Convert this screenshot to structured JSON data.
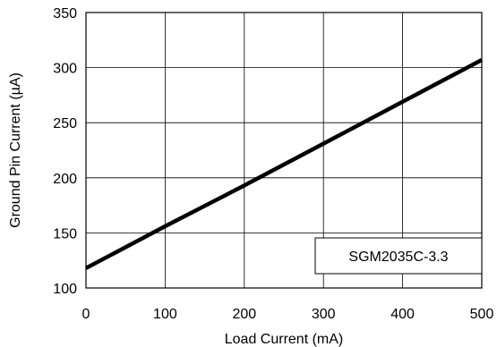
{
  "chart_data": {
    "type": "line",
    "title": "",
    "xlabel": "Load Current (mA)",
    "ylabel": "Ground Pin Current (µA)",
    "xlim": [
      0,
      500
    ],
    "ylim": [
      100,
      350
    ],
    "x_ticks": [
      0,
      100,
      200,
      300,
      400,
      500
    ],
    "y_ticks": [
      100,
      150,
      200,
      250,
      300,
      350
    ],
    "grid": true,
    "annotation": "SGM2035C-3.3",
    "series": [
      {
        "x": [
          0,
          100,
          200,
          300,
          400,
          500
        ],
        "values": [
          118,
          156,
          193,
          231,
          269,
          307
        ],
        "color": "#000000"
      }
    ]
  }
}
